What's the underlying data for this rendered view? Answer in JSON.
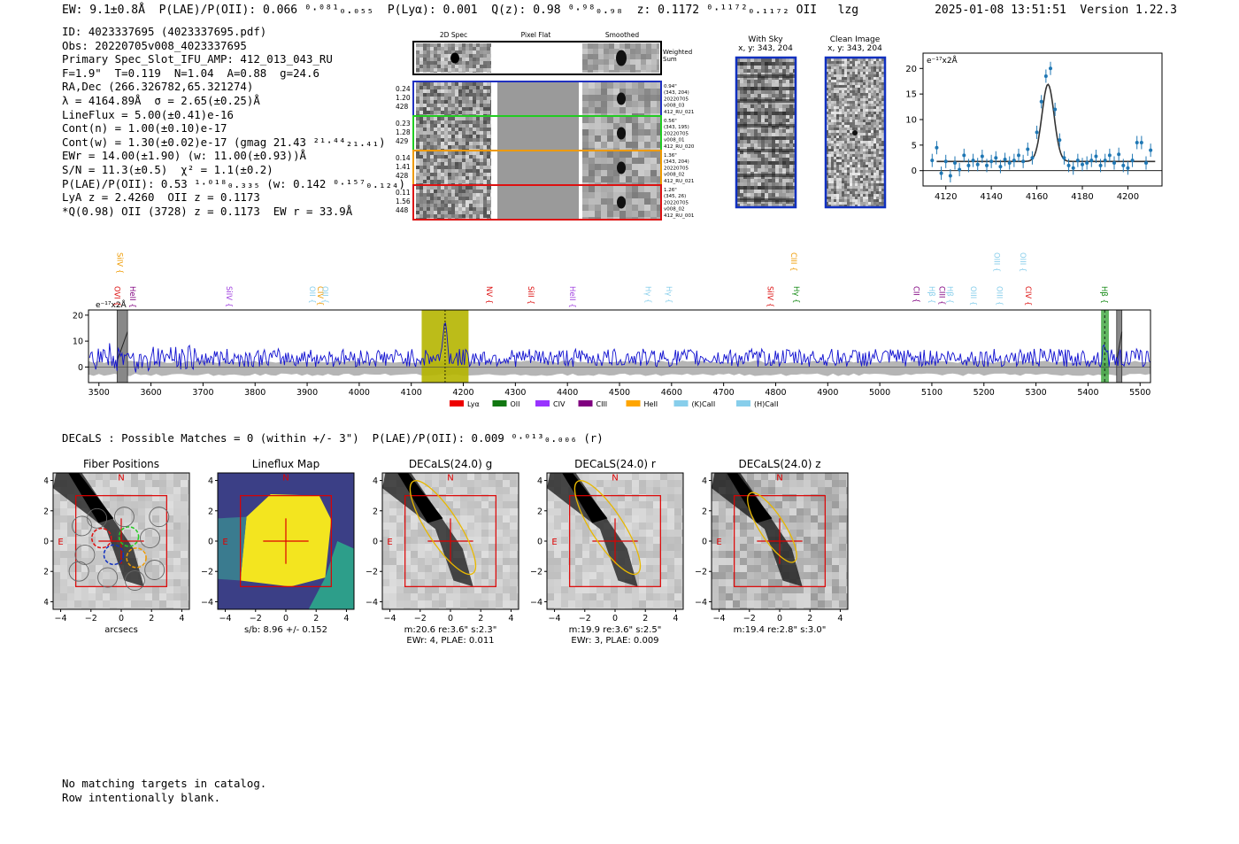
{
  "header": {
    "left": "EW: 9.1±0.8Å  P(LAE)/P(OII): 0.066 ⁰·⁰⁸¹₀.₀₅₅  P(Lyα): 0.001  Q(z): 0.98 ⁰·⁹⁸₀.₉₈  z: 0.1172 ⁰·¹¹⁷²₀.₁₁₇₂ OII   lzg",
    "right": "2025-01-08 13:51:51  Version 1.22.3"
  },
  "info_lines": [
    "ID: 4023337695 (4023337695.pdf)",
    "Obs: 20220705v008_4023337695",
    "Primary Spec_Slot_IFU_AMP: 412_013_043_RU",
    "F=1.9\"  T=0.119  N=1.04  A=0.88  g=24.6",
    "RA,Dec (266.326782,65.321274)",
    "λ = 4164.89Å  σ = 2.65(±0.25)Å",
    "LineFlux = 5.00(±0.41)e-16",
    "Cont(n) = 1.00(±0.10)e-17",
    "Cont(w) = 1.30(±0.02)e-17 (gmag 21.43 ²¹·⁴⁴₂₁.₄₁)",
    "EWr = 14.00(±1.90) (w: 11.00(±0.93))Å",
    "S/N = 11.3(±0.5)  χ² = 1.1(±0.2)",
    "P(LAE)/P(OII): 0.53 ¹·⁰¹⁸₀.₃₃₅ (w: 0.142 ⁰·¹⁵⁷₀.₁₂₄)",
    "LyA z = 2.4260  OII z = 0.1173",
    "*Q(0.98) OII (3728) z = 0.1173  EW r = 33.9Å"
  ],
  "cutouts": {
    "col_titles": [
      "2D Spec",
      "Pixel Flat",
      "Smoothed"
    ],
    "weighted_label": "Weighted Sum",
    "rows": [
      {
        "left": [
          "0.24",
          "1.20",
          "428"
        ],
        "right": [
          "0.94\"",
          "(343, 204)",
          "20220705",
          "v008_03",
          "412_RU_021"
        ],
        "color": "#2030c0"
      },
      {
        "left": [
          "0.23",
          "1.28",
          "429"
        ],
        "right": [
          "0.56\"",
          "(343, 195)",
          "20220705",
          "v008_01",
          "412_RU_020"
        ],
        "color": "#22cc22"
      },
      {
        "left": [
          "0.14",
          "1.41",
          "428"
        ],
        "right": [
          "1.36\"",
          "(343, 204)",
          "20220705",
          "v008_02",
          "412_RU_021"
        ],
        "color": "#ee9a00"
      },
      {
        "left": [
          "0.11",
          "1.56",
          "448"
        ],
        "right": [
          "1.26\"",
          "(345, 26)",
          "20220705",
          "v008_02",
          "412_RU_001"
        ],
        "color": "#dd1111"
      }
    ],
    "with_sky": {
      "title": "With Sky",
      "sub": "x, y: 343, 204"
    },
    "clean": {
      "title": "Clean Image",
      "sub": "x, y: 343, 204"
    }
  },
  "decals_line": "DECaLS : Possible Matches = 0 (within +/- 3\")  P(LAE)/P(OII): 0.009 ⁰·⁰¹³₀.₀₀₆ (r)",
  "footer": [
    "No matching targets in catalog.",
    "Row intentionally blank."
  ],
  "colors": {
    "spectrum": "#1010d0",
    "fit_points": "#1f77b4",
    "highlight": "#b5b500",
    "hb_band": "#3aa53a",
    "compass": "#dd0000",
    "ellipse": "#e8b800"
  },
  "chart_data": [
    {
      "type": "scatter",
      "name": "line-fit-zoom",
      "ylabel": "e⁻¹⁷x2Å",
      "xlim": [
        4110,
        4215
      ],
      "ylim": [
        -3,
        23
      ],
      "xticks": [
        4120,
        4140,
        4160,
        4180,
        4200
      ],
      "yticks": [
        0,
        5,
        10,
        15,
        20
      ],
      "x": [
        4114,
        4116,
        4118,
        4120,
        4122,
        4124,
        4126,
        4128,
        4130,
        4132,
        4134,
        4136,
        4138,
        4140,
        4142,
        4144,
        4146,
        4148,
        4150,
        4152,
        4154,
        4156,
        4158,
        4160,
        4162,
        4164,
        4166,
        4168,
        4170,
        4172,
        4174,
        4176,
        4178,
        4180,
        4182,
        4184,
        4186,
        4188,
        4190,
        4192,
        4194,
        4196,
        4198,
        4200,
        4202,
        4204,
        4206,
        4208,
        4210
      ],
      "y": [
        2.0,
        4.5,
        -0.5,
        1.8,
        -1.0,
        1.5,
        0.2,
        3.0,
        1.0,
        2.0,
        1.2,
        2.8,
        1.0,
        1.8,
        2.5,
        0.8,
        2.2,
        1.5,
        2.0,
        3.0,
        1.8,
        4.2,
        2.5,
        7.5,
        13.5,
        18.5,
        20.0,
        12.0,
        6.0,
        2.5,
        1.0,
        0.5,
        2.0,
        1.2,
        1.5,
        2.0,
        2.8,
        1.0,
        2.0,
        3.0,
        1.5,
        3.2,
        1.0,
        0.5,
        2.0,
        5.5,
        5.5,
        1.5,
        4.0
      ],
      "fit": {
        "continuum": 1.8,
        "center": 4164.9,
        "sigma": 2.65,
        "peak": 16.9
      }
    },
    {
      "type": "line",
      "name": "full-spectrum",
      "ylabel": "e⁻¹⁷x2Å",
      "xlim": [
        3480,
        5520
      ],
      "ylim": [
        -6,
        22
      ],
      "xticks": [
        3500,
        3600,
        3700,
        3800,
        3900,
        4000,
        4100,
        4200,
        4300,
        4400,
        4500,
        4600,
        4700,
        4800,
        4900,
        5000,
        5100,
        5200,
        5300,
        5400,
        5500
      ],
      "yticks": [
        0,
        10,
        20
      ],
      "highlight_band": [
        4120,
        4210
      ],
      "hb_band": [
        5425,
        5440
      ],
      "masked_bands": [
        [
          3535,
          3555
        ],
        [
          5455,
          5465
        ]
      ],
      "emission_peak": {
        "x": 4165,
        "y": 20
      },
      "lines": [
        {
          "label": "OVI",
          "x": 3535,
          "color": "#dd1111",
          "row": 1
        },
        {
          "label": "SiIV",
          "x": 3540,
          "color": "#ee9a00",
          "row": 0
        },
        {
          "label": "HeII",
          "x": 3565,
          "color": "#800080",
          "row": 1
        },
        {
          "label": "SiIV",
          "x": 3750,
          "color": "#a040e0",
          "row": 1
        },
        {
          "label": "OII",
          "x": 3910,
          "color": "#87ceeb",
          "row": 1
        },
        {
          "label": "CIV",
          "x": 3925,
          "color": "#ee9a00",
          "row": 1
        },
        {
          "label": "OII",
          "x": 3935,
          "color": "#87ceeb",
          "row": 1
        },
        {
          "label": "NV",
          "x": 4250,
          "color": "#dd1111",
          "row": 1
        },
        {
          "label": "SiII",
          "x": 4330,
          "color": "#dd1111",
          "row": 1
        },
        {
          "label": "HeII",
          "x": 4410,
          "color": "#a040e0",
          "row": 1
        },
        {
          "label": "Hγ",
          "x": 4555,
          "color": "#87ceeb",
          "row": 1
        },
        {
          "label": "Hγ",
          "x": 4595,
          "color": "#87ceeb",
          "row": 1
        },
        {
          "label": "SiIV",
          "x": 4790,
          "color": "#dd1111",
          "row": 1
        },
        {
          "label": "CIII",
          "x": 4835,
          "color": "#ee9a00",
          "row": 0
        },
        {
          "label": "Hγ",
          "x": 4840,
          "color": "#118811",
          "row": 1
        },
        {
          "label": "CII",
          "x": 5070,
          "color": "#800080",
          "row": 1
        },
        {
          "label": "Hβ",
          "x": 5100,
          "color": "#87ceeb",
          "row": 1
        },
        {
          "label": "CIII",
          "x": 5120,
          "color": "#800080",
          "row": 1
        },
        {
          "label": "Hβ",
          "x": 5135,
          "color": "#87ceeb",
          "row": 1
        },
        {
          "label": "OIII",
          "x": 5180,
          "color": "#87ceeb",
          "row": 1
        },
        {
          "label": "OIII",
          "x": 5225,
          "color": "#87ceeb",
          "row": 0
        },
        {
          "label": "OIII",
          "x": 5230,
          "color": "#87ceeb",
          "row": 1
        },
        {
          "label": "OIII",
          "x": 5275,
          "color": "#87ceeb",
          "row": 0
        },
        {
          "label": "CIV",
          "x": 5285,
          "color": "#dd1111",
          "row": 1
        },
        {
          "label": "Hβ",
          "x": 5432,
          "color": "#118811",
          "row": 1
        }
      ],
      "legend": [
        {
          "label": "Lyα",
          "color": "#ee0000"
        },
        {
          "label": "OII",
          "color": "#117711"
        },
        {
          "label": "CIV",
          "color": "#9933ff"
        },
        {
          "label": "CIII",
          "color": "#800080"
        },
        {
          "label": "HeII",
          "color": "#ffa500"
        },
        {
          "label": "(K)CaII",
          "color": "#87ceeb"
        },
        {
          "label": "(H)CaII",
          "color": "#87ceeb"
        }
      ]
    },
    {
      "type": "heatmap",
      "name": "image-cutouts",
      "xlim": [
        -4.5,
        4.5
      ],
      "ylim": [
        -4.5,
        4.5
      ],
      "ticks": [
        -4,
        -2,
        0,
        2,
        4
      ],
      "compass": {
        "north": "N",
        "east": "E"
      },
      "panels": [
        {
          "title": "Fiber Positions",
          "captions": [
            "arcsecs"
          ]
        },
        {
          "title": "Lineflux Map",
          "captions": [
            "s/b: 8.96 +/- 0.152"
          ]
        },
        {
          "title": "DECaLS(24.0) g",
          "captions": [
            "m:20.6  re:3.6\"  s:2.3\"",
            "EWr: 4, PLAE: 0.011"
          ]
        },
        {
          "title": "DECaLS(24.0) r",
          "captions": [
            "m:19.9  re:3.6\"  s:2.5\"",
            "EWr: 3, PLAE: 0.009"
          ]
        },
        {
          "title": "DECaLS(24.0) z",
          "captions": [
            "m:19.4  re:2.8\"  s:3.0\""
          ]
        }
      ]
    }
  ]
}
